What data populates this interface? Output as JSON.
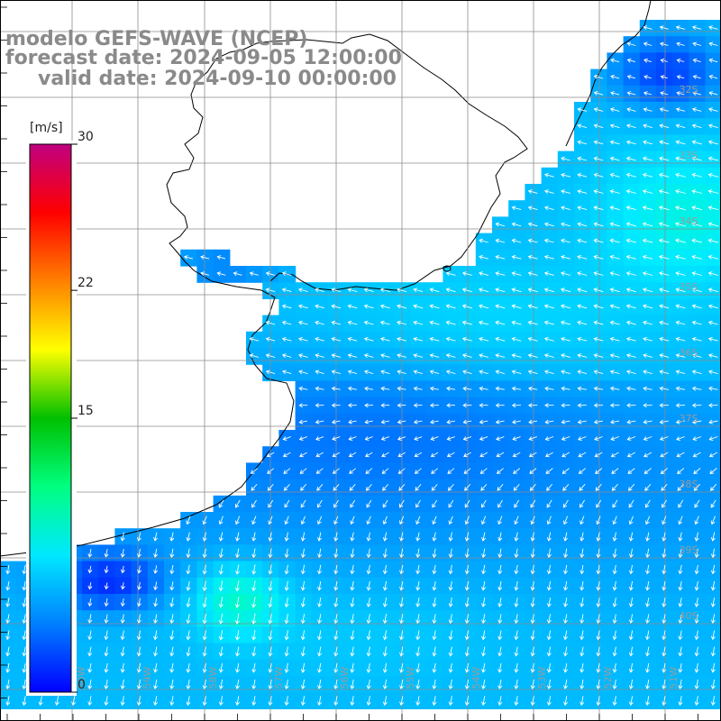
{
  "title": {
    "line1": "modelo GEFS-WAVE (NCEP)",
    "line2": "forecast date: 2024-09-05 12:00:00",
    "line3": "valid date: 2024-09-10 00:00:00"
  },
  "colorbar": {
    "units": "[m/s]",
    "ticks": [
      "30",
      "22",
      "15",
      "0"
    ],
    "min": 0,
    "max": 30,
    "colors": [
      "#0000ff",
      "#0080ff",
      "#00e8ff",
      "#00ff80",
      "#00c000",
      "#ffff00",
      "#ff8000",
      "#ff0000",
      "#c00080"
    ]
  },
  "map": {
    "lat_labels": [
      "32S",
      "33S",
      "34S",
      "35S",
      "36S",
      "37S",
      "38S",
      "39S",
      "40S"
    ],
    "lon_labels": [
      "60W",
      "59W",
      "58W",
      "57W",
      "56W",
      "55W",
      "54W",
      "53W",
      "52W",
      "51W"
    ],
    "land_color": "#ffffff",
    "grid_color": "#8c8c8c",
    "coast_color": "#000000",
    "arrow_color": "#ffffff"
  }
}
